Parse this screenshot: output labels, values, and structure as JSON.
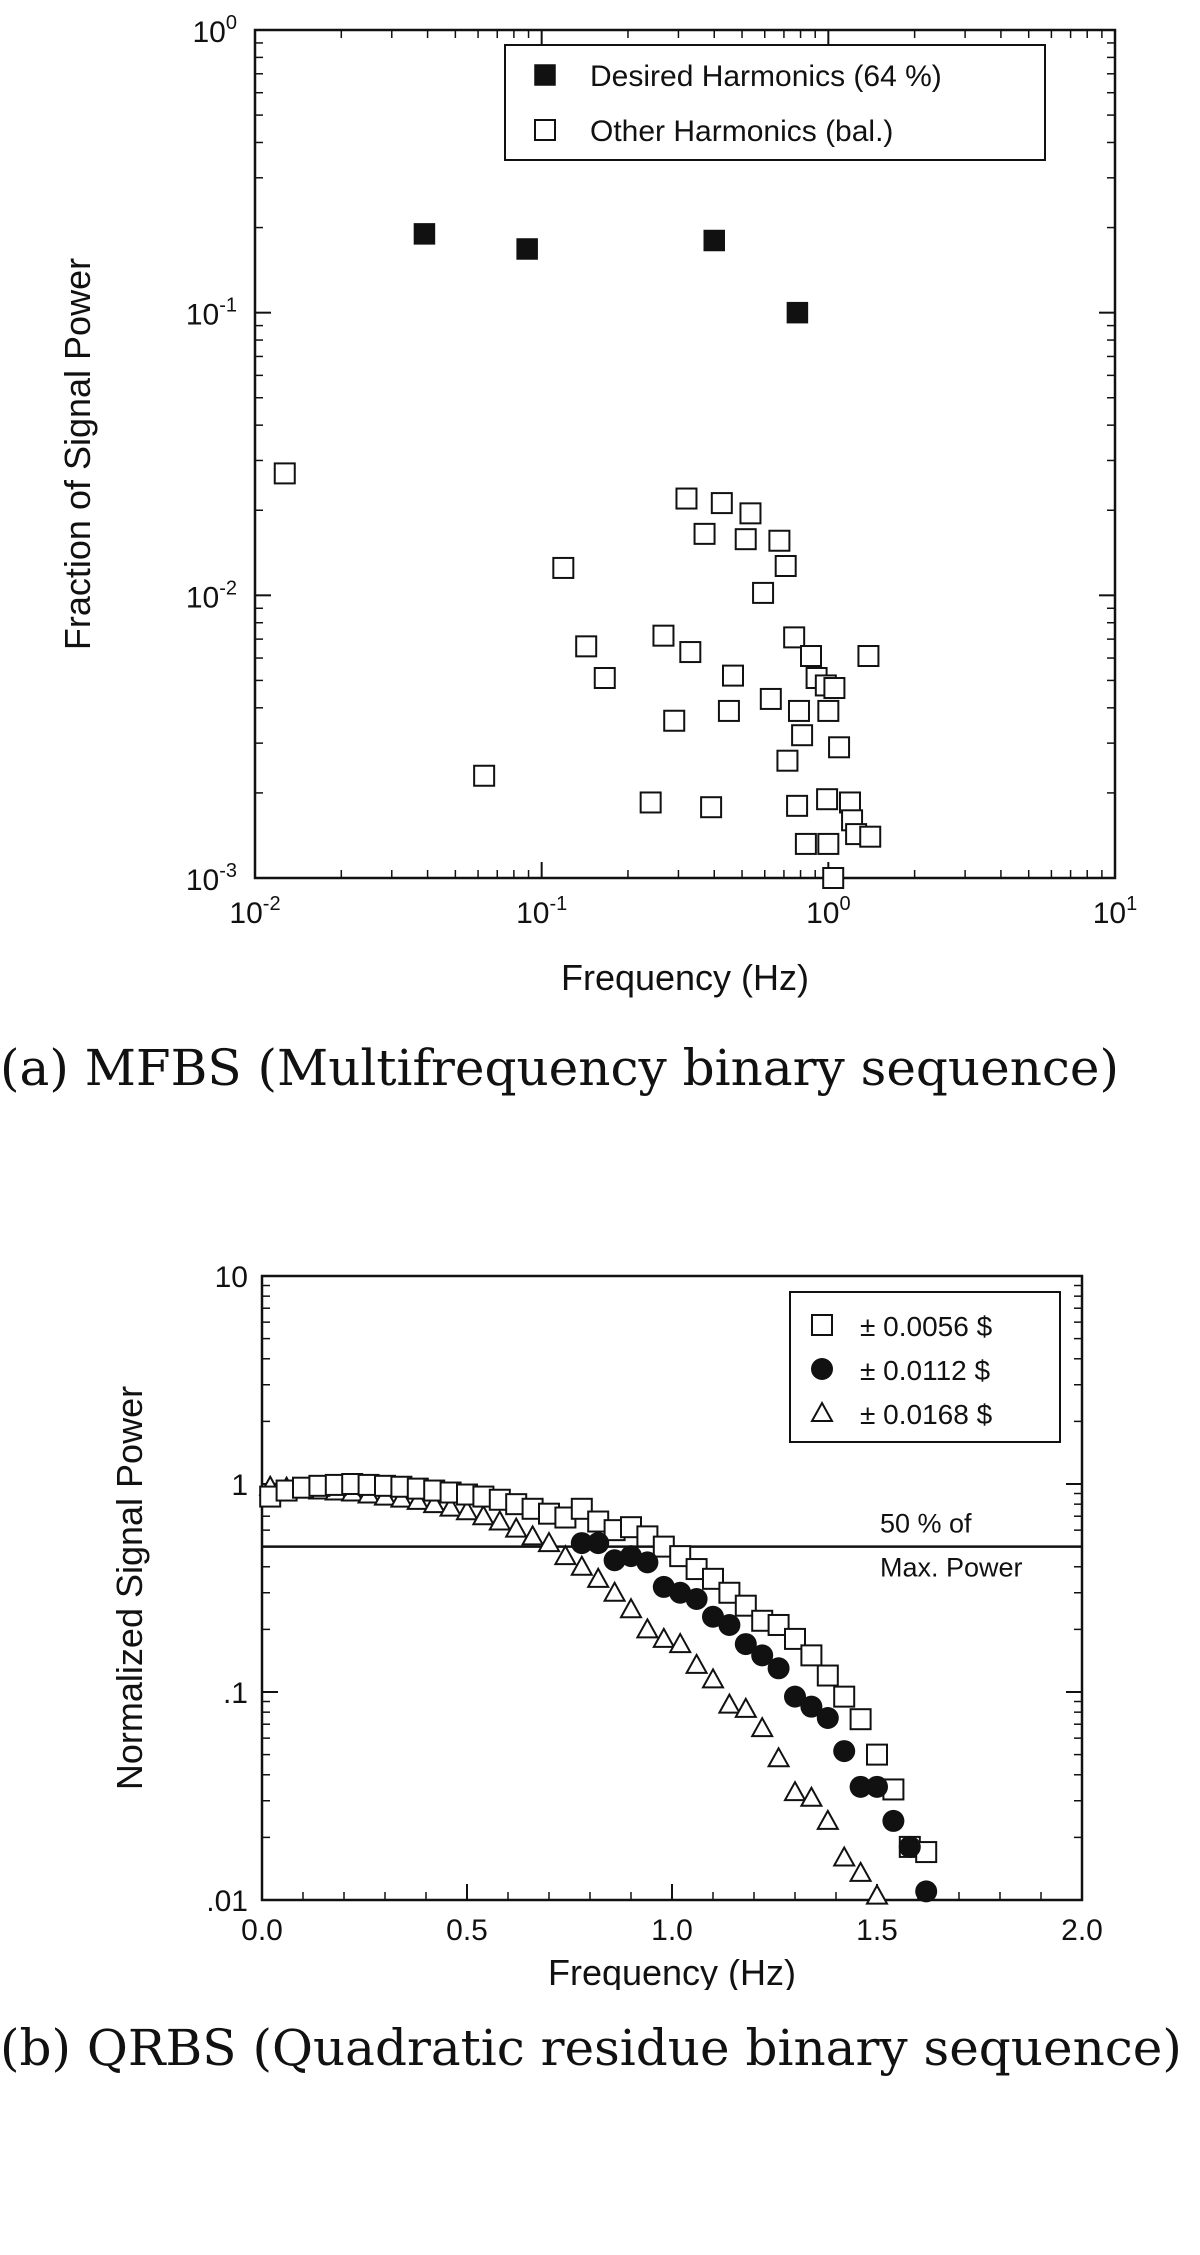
{
  "chart_data": [
    {
      "type": "scatter",
      "panel": "a",
      "xscale": "log",
      "yscale": "log",
      "xlim": [
        0.01,
        10
      ],
      "ylim": [
        0.001,
        1
      ],
      "xlabel": "Frequency (Hz)",
      "ylabel": "Fraction of Signal Power",
      "xticks": [
        {
          "v": 0.01,
          "base": "10",
          "exp": "-2"
        },
        {
          "v": 0.1,
          "base": "10",
          "exp": "-1"
        },
        {
          "v": 1,
          "base": "10",
          "exp": "0"
        },
        {
          "v": 10,
          "base": "10",
          "exp": "1"
        }
      ],
      "yticks": [
        {
          "v": 0.001,
          "base": "10",
          "exp": "-3"
        },
        {
          "v": 0.01,
          "base": "10",
          "exp": "-2"
        },
        {
          "v": 0.1,
          "base": "10",
          "exp": "-1"
        },
        {
          "v": 1,
          "base": "10",
          "exp": "0"
        }
      ],
      "legend_position": "top-right",
      "series": [
        {
          "name": "Desired Harmonics (64 %)",
          "marker": "square-filled",
          "points": [
            [
              0.039,
              0.19
            ],
            [
              0.089,
              0.168
            ],
            [
              0.4,
              0.18
            ],
            [
              0.78,
              0.1
            ]
          ]
        },
        {
          "name": "Other Harmonics (bal.)",
          "marker": "square-open",
          "points": [
            [
              0.0127,
              0.027
            ],
            [
              0.063,
              0.0023
            ],
            [
              0.119,
              0.0125
            ],
            [
              0.143,
              0.0066
            ],
            [
              0.166,
              0.0051
            ],
            [
              0.24,
              0.00185
            ],
            [
              0.266,
              0.0072
            ],
            [
              0.29,
              0.0036
            ],
            [
              0.32,
              0.022
            ],
            [
              0.33,
              0.0063
            ],
            [
              0.37,
              0.0165
            ],
            [
              0.39,
              0.00178
            ],
            [
              0.425,
              0.0212
            ],
            [
              0.45,
              0.0039
            ],
            [
              0.465,
              0.0052
            ],
            [
              0.515,
              0.0158
            ],
            [
              0.535,
              0.0195
            ],
            [
              0.592,
              0.0102
            ],
            [
              0.63,
              0.0043
            ],
            [
              0.675,
              0.0156
            ],
            [
              0.71,
              0.0127
            ],
            [
              0.72,
              0.0026
            ],
            [
              0.76,
              0.0071
            ],
            [
              0.778,
              0.0018
            ],
            [
              0.79,
              0.0039
            ],
            [
              0.81,
              0.0032
            ],
            [
              0.835,
              0.00132
            ],
            [
              0.87,
              0.0061
            ],
            [
              0.91,
              0.0051
            ],
            [
              0.98,
              0.0048
            ],
            [
              0.99,
              0.0019
            ],
            [
              1.0,
              0.0039
            ],
            [
              1.0,
              0.00132
            ],
            [
              1.04,
              0.001
            ],
            [
              1.05,
              0.0047
            ],
            [
              1.09,
              0.0029
            ],
            [
              1.19,
              0.00185
            ],
            [
              1.21,
              0.0016
            ],
            [
              1.25,
              0.00143
            ],
            [
              1.38,
              0.0061
            ],
            [
              1.4,
              0.0014
            ]
          ]
        }
      ]
    },
    {
      "type": "scatter",
      "panel": "b",
      "xscale": "linear",
      "yscale": "log",
      "xlim": [
        0,
        2
      ],
      "ylim": [
        0.01,
        10
      ],
      "xlabel": "Frequency (Hz)",
      "ylabel": "Normalized Signal Power",
      "xticks": [
        {
          "v": 0,
          "label": "0.0"
        },
        {
          "v": 0.5,
          "label": "0.5"
        },
        {
          "v": 1.0,
          "label": "1.0"
        },
        {
          "v": 1.5,
          "label": "1.5"
        },
        {
          "v": 2.0,
          "label": "2.0"
        }
      ],
      "yticks": [
        {
          "v": 0.01,
          "label": ".01"
        },
        {
          "v": 0.1,
          "label": ".1"
        },
        {
          "v": 1,
          "label": "1"
        },
        {
          "v": 10,
          "label": "10"
        }
      ],
      "reference_line": {
        "y": 0.5,
        "label_line1": "50 % of",
        "label_line2": "Max. Power"
      },
      "legend_position": "top-right",
      "series": [
        {
          "name": "± 0.0056 $",
          "marker": "square-open",
          "points": [
            [
              0.02,
              0.87
            ],
            [
              0.06,
              0.93
            ],
            [
              0.1,
              0.96
            ],
            [
              0.14,
              0.98
            ],
            [
              0.18,
              0.99
            ],
            [
              0.22,
              1.0
            ],
            [
              0.26,
              0.99
            ],
            [
              0.3,
              0.98
            ],
            [
              0.34,
              0.97
            ],
            [
              0.38,
              0.95
            ],
            [
              0.42,
              0.93
            ],
            [
              0.46,
              0.91
            ],
            [
              0.5,
              0.89
            ],
            [
              0.54,
              0.87
            ],
            [
              0.58,
              0.84
            ],
            [
              0.62,
              0.8
            ],
            [
              0.66,
              0.76
            ],
            [
              0.7,
              0.72
            ],
            [
              0.74,
              0.69
            ],
            [
              0.78,
              0.76
            ],
            [
              0.82,
              0.66
            ],
            [
              0.86,
              0.6
            ],
            [
              0.9,
              0.62
            ],
            [
              0.94,
              0.56
            ],
            [
              0.98,
              0.5
            ],
            [
              1.02,
              0.45
            ],
            [
              1.06,
              0.39
            ],
            [
              1.1,
              0.35
            ],
            [
              1.14,
              0.3
            ],
            [
              1.18,
              0.26
            ],
            [
              1.22,
              0.22
            ],
            [
              1.26,
              0.21
            ],
            [
              1.3,
              0.18
            ],
            [
              1.34,
              0.15
            ],
            [
              1.38,
              0.12
            ],
            [
              1.42,
              0.095
            ],
            [
              1.46,
              0.074
            ],
            [
              1.5,
              0.05
            ],
            [
              1.54,
              0.034
            ],
            [
              1.58,
              0.018
            ],
            [
              1.62,
              0.017
            ]
          ]
        },
        {
          "name": "± 0.0112 $",
          "marker": "circle-filled",
          "points": [
            [
              0.78,
              0.52
            ],
            [
              0.82,
              0.52
            ],
            [
              0.86,
              0.43
            ],
            [
              0.9,
              0.45
            ],
            [
              0.94,
              0.42
            ],
            [
              0.98,
              0.32
            ],
            [
              1.02,
              0.3
            ],
            [
              1.06,
              0.28
            ],
            [
              1.1,
              0.23
            ],
            [
              1.14,
              0.21
            ],
            [
              1.18,
              0.17
            ],
            [
              1.22,
              0.15
            ],
            [
              1.26,
              0.13
            ],
            [
              1.3,
              0.095
            ],
            [
              1.34,
              0.085
            ],
            [
              1.38,
              0.075
            ],
            [
              1.42,
              0.052
            ],
            [
              1.46,
              0.035
            ],
            [
              1.5,
              0.035
            ],
            [
              1.54,
              0.024
            ],
            [
              1.58,
              0.018
            ],
            [
              1.62,
              0.011
            ]
          ]
        },
        {
          "name": "± 0.0168 $",
          "marker": "triangle-open",
          "points": [
            [
              0.02,
              0.97
            ],
            [
              0.06,
              0.96
            ],
            [
              0.1,
              0.95
            ],
            [
              0.14,
              0.93
            ],
            [
              0.18,
              0.92
            ],
            [
              0.22,
              0.91
            ],
            [
              0.26,
              0.89
            ],
            [
              0.3,
              0.87
            ],
            [
              0.34,
              0.85
            ],
            [
              0.38,
              0.83
            ],
            [
              0.42,
              0.8
            ],
            [
              0.46,
              0.77
            ],
            [
              0.5,
              0.74
            ],
            [
              0.54,
              0.7
            ],
            [
              0.58,
              0.66
            ],
            [
              0.62,
              0.61
            ],
            [
              0.66,
              0.56
            ],
            [
              0.7,
              0.52
            ],
            [
              0.74,
              0.45
            ],
            [
              0.78,
              0.4
            ],
            [
              0.82,
              0.35
            ],
            [
              0.86,
              0.3
            ],
            [
              0.9,
              0.25
            ],
            [
              0.94,
              0.2
            ],
            [
              0.98,
              0.18
            ],
            [
              1.02,
              0.17
            ],
            [
              1.06,
              0.135
            ],
            [
              1.1,
              0.115
            ],
            [
              1.14,
              0.087
            ],
            [
              1.18,
              0.083
            ],
            [
              1.22,
              0.067
            ],
            [
              1.26,
              0.048
            ],
            [
              1.3,
              0.033
            ],
            [
              1.34,
              0.031
            ],
            [
              1.38,
              0.024
            ],
            [
              1.42,
              0.016
            ],
            [
              1.46,
              0.0135
            ],
            [
              1.5,
              0.0105
            ]
          ]
        }
      ]
    }
  ],
  "captions": {
    "a": "(a) MFBS (Multifrequency binary sequence)",
    "b": "(b) QRBS (Quadratic residue binary sequence)"
  }
}
